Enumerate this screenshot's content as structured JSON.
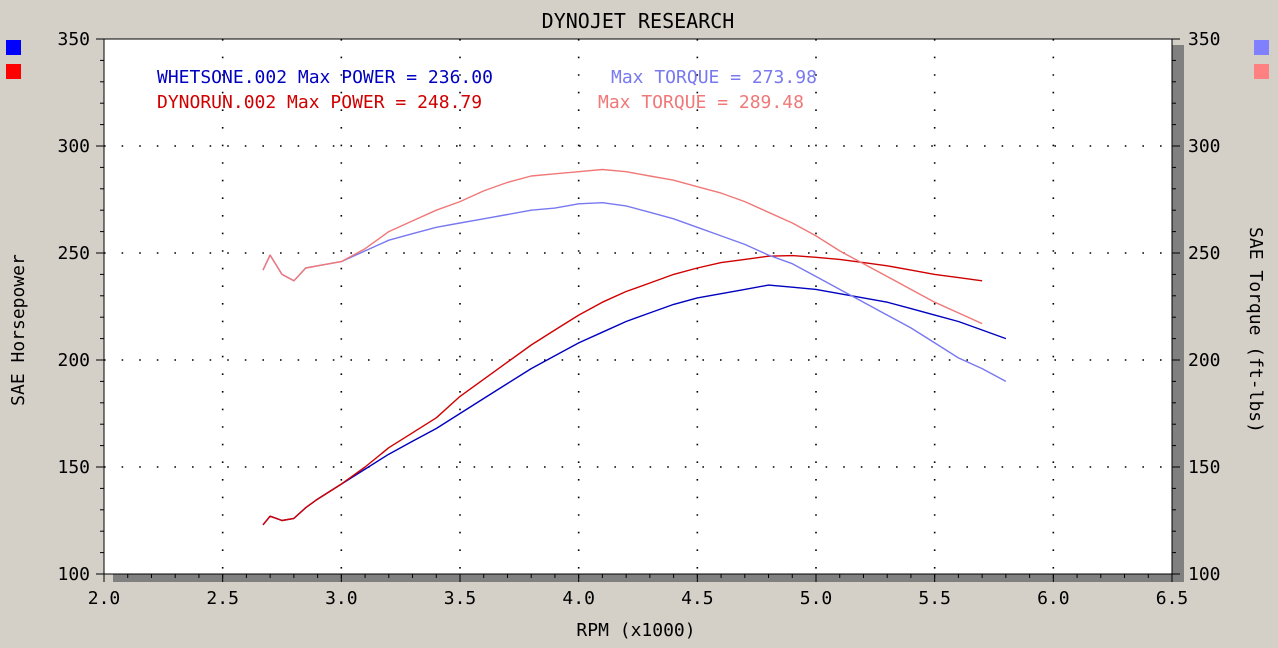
{
  "chart_data": {
    "type": "line",
    "title": "DYNOJET RESEARCH",
    "xlabel": "RPM (x1000)",
    "ylabel_left": "SAE Horsepower",
    "ylabel_right": "SAE Torque (ft-lbs)",
    "xlim": [
      2.0,
      6.5
    ],
    "ylim": [
      100,
      350
    ],
    "x_ticks": [
      "2.0",
      "2.5",
      "3.0",
      "3.5",
      "4.0",
      "4.5",
      "5.0",
      "5.5",
      "6.0",
      "6.5"
    ],
    "y_ticks": [
      "100",
      "150",
      "200",
      "250",
      "300",
      "350"
    ],
    "grid": true,
    "legend": [
      {
        "run": "WHETSONE.002",
        "power_text": "WHETSONE.002 Max POWER = 236.00",
        "torque_text": "Max TORQUE = 273.98",
        "power_color": "#0000c0",
        "torque_color": "#7878f0"
      },
      {
        "run": "DYNORUN.002",
        "power_text": "DYNORUN.002 Max POWER = 248.79",
        "torque_text": "Max TORQUE = 289.48",
        "power_color": "#d00000",
        "torque_color": "#f07878"
      }
    ],
    "series": [
      {
        "kind": "power",
        "color": "#0000c0",
        "x": [
          2.67,
          2.7,
          2.75,
          2.8,
          2.85,
          2.9,
          3.0,
          3.1,
          3.2,
          3.3,
          3.4,
          3.5,
          3.6,
          3.7,
          3.8,
          3.9,
          4.0,
          4.1,
          4.2,
          4.3,
          4.4,
          4.5,
          4.6,
          4.7,
          4.8,
          4.9,
          5.0,
          5.1,
          5.2,
          5.3,
          5.4,
          5.5,
          5.6,
          5.7,
          5.8
        ],
        "y": [
          123,
          127,
          125,
          126,
          131,
          135,
          142,
          149,
          156,
          162,
          168,
          175,
          182,
          189,
          196,
          202,
          208,
          213,
          218,
          222,
          226,
          229,
          231,
          233,
          235,
          234,
          233,
          231,
          229,
          227,
          224,
          221,
          218,
          214,
          210
        ]
      },
      {
        "kind": "power",
        "color": "#d00000",
        "x": [
          2.67,
          2.7,
          2.75,
          2.8,
          2.85,
          2.9,
          3.0,
          3.1,
          3.2,
          3.3,
          3.4,
          3.5,
          3.6,
          3.7,
          3.8,
          3.9,
          4.0,
          4.1,
          4.2,
          4.3,
          4.4,
          4.5,
          4.6,
          4.7,
          4.8,
          4.9,
          5.0,
          5.1,
          5.2,
          5.3,
          5.4,
          5.5,
          5.6,
          5.7
        ],
        "y": [
          123,
          127,
          125,
          126,
          131,
          135,
          142,
          150,
          159,
          166,
          173,
          183,
          191,
          199,
          207,
          214,
          221,
          227,
          232,
          236,
          240,
          243,
          245.5,
          247,
          248.5,
          248.8,
          248,
          247,
          245.5,
          244,
          242,
          240,
          238.5,
          237
        ]
      },
      {
        "kind": "torque",
        "color": "#7878f0",
        "x": [
          2.67,
          2.7,
          2.75,
          2.8,
          2.85,
          2.9,
          3.0,
          3.1,
          3.2,
          3.3,
          3.4,
          3.5,
          3.6,
          3.7,
          3.8,
          3.9,
          4.0,
          4.1,
          4.2,
          4.3,
          4.4,
          4.5,
          4.6,
          4.7,
          4.8,
          4.9,
          5.0,
          5.1,
          5.2,
          5.3,
          5.4,
          5.5,
          5.6,
          5.7,
          5.8
        ],
        "y": [
          242,
          249,
          240,
          237,
          243,
          244,
          246,
          251,
          256,
          259,
          262,
          264,
          266,
          268,
          270,
          271,
          273,
          273.5,
          272,
          269,
          266,
          262,
          258,
          254,
          249,
          245,
          239,
          233,
          227,
          221,
          215,
          208,
          201,
          196,
          190
        ]
      },
      {
        "kind": "torque",
        "color": "#f07878",
        "x": [
          2.67,
          2.7,
          2.75,
          2.8,
          2.85,
          2.9,
          3.0,
          3.1,
          3.2,
          3.3,
          3.4,
          3.5,
          3.6,
          3.7,
          3.8,
          3.9,
          4.0,
          4.1,
          4.2,
          4.3,
          4.4,
          4.5,
          4.6,
          4.7,
          4.8,
          4.9,
          5.0,
          5.1,
          5.2,
          5.3,
          5.4,
          5.5,
          5.6,
          5.7
        ],
        "y": [
          242,
          249,
          240,
          237,
          243,
          244,
          246,
          252,
          260,
          265,
          270,
          274,
          279,
          283,
          286,
          287,
          288,
          289,
          288,
          286,
          284,
          281,
          278,
          274,
          269,
          264,
          258,
          251,
          245,
          239,
          233,
          227,
          222,
          217
        ]
      }
    ]
  },
  "swatches": {
    "left": [
      "#0000ff",
      "#ff0000"
    ],
    "right": [
      "#8080ff",
      "#ff8080"
    ]
  }
}
